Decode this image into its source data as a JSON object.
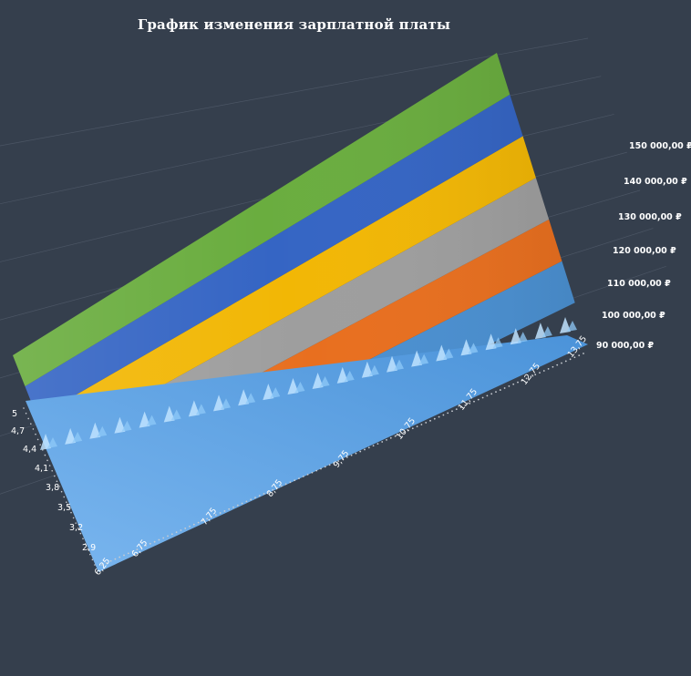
{
  "chart_data": {
    "type": "surface",
    "title": "График изменения зарплатной платы",
    "x_ticks": [
      "6,25",
      "6,75",
      "7,75",
      "8,75",
      "9,75",
      "10,75",
      "11,75",
      "12,75",
      "13,75"
    ],
    "y_ticks": [
      "2,9",
      "3,2",
      "3,5",
      "3,8",
      "4,1",
      "4,4",
      "4,7",
      "5"
    ],
    "z_ticks": [
      "90 000,00 ₽",
      "100 000,00 ₽",
      "110 000,00 ₽",
      "120 000,00 ₽",
      "130 000,00 ₽",
      "140 000,00 ₽",
      "150 000,00 ₽"
    ],
    "zlim": [
      90000,
      150000
    ],
    "bands": [
      {
        "from": 80000,
        "to": 90000,
        "color": "#5b9bd5"
      },
      {
        "from": 90000,
        "to": 100000,
        "color": "#4a8fd0"
      },
      {
        "from": 100000,
        "to": 110000,
        "color": "#e86f1f"
      },
      {
        "from": 110000,
        "to": 120000,
        "color": "#9e9e9e"
      },
      {
        "from": 120000,
        "to": 130000,
        "color": "#f2b705"
      },
      {
        "from": 130000,
        "to": 140000,
        "color": "#3565c4"
      },
      {
        "from": 140000,
        "to": 150000,
        "color": "#6aad3f"
      }
    ],
    "grid": true,
    "colors": {
      "background": "#353f4d",
      "text": "#ffffff",
      "grid": "#5a6474",
      "axis_dots": "#c8ccd2"
    }
  }
}
